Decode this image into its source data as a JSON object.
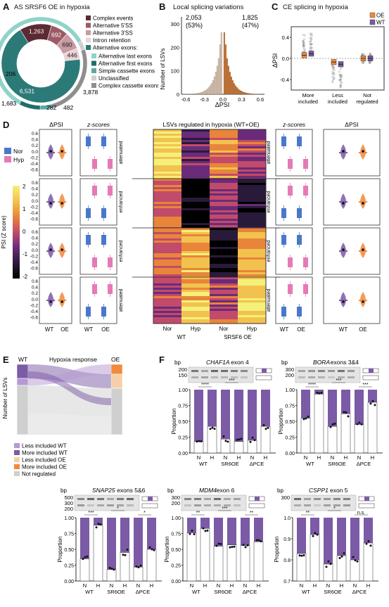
{
  "panels": {
    "A": {
      "letter": "A",
      "title": "AS SRSF6 OE in hypoxia",
      "outer_ring": [
        {
          "value": 1263,
          "label": "1,263",
          "color": "#5b2a33"
        },
        {
          "value": 692,
          "label": "692",
          "color": "#9a5a66"
        },
        {
          "value": 690,
          "label": "690",
          "color": "#c89aa2"
        },
        {
          "value": 446,
          "label": "446",
          "color": "#ead3d6"
        },
        {
          "value": 6531,
          "label": "6,531",
          "color": "#2b7a78"
        }
      ],
      "inner_ring": [
        {
          "value": 206,
          "label": "206",
          "color": "#cfcfcf"
        },
        {
          "value": 1683,
          "label": "1,683",
          "color": "#8e8e8e"
        },
        {
          "value": 282,
          "label": "282",
          "color": "#5aa9a3"
        },
        {
          "value": 482,
          "label": "482",
          "color": "#1f6e6a"
        },
        {
          "value": 3878,
          "label": "3,878",
          "color": "#8fd3c9"
        }
      ],
      "legend_main": [
        {
          "label": "Complex events",
          "color": "#5b2a33"
        },
        {
          "label": "Alternative 5'SS",
          "color": "#9a5a66"
        },
        {
          "label": "Alternative 3'SS",
          "color": "#c89aa2"
        },
        {
          "label": "Intron retention",
          "color": "#ead3d6"
        },
        {
          "label": "Alternative exons:",
          "color": "#2b7a78"
        }
      ],
      "legend_sub": [
        {
          "label": "Alternative last exons",
          "color": "#8fd3c9"
        },
        {
          "label": "Alternative first exons",
          "color": "#1f6e6a"
        },
        {
          "label": "Simple cassette exons",
          "color": "#5aa9a3"
        },
        {
          "label": "Unclassified",
          "color": "#cfcfcf"
        },
        {
          "label": "Complex cassette exons",
          "color": "#8e8e8e"
        }
      ]
    },
    "B": {
      "letter": "B",
      "title": "Local splicing variations",
      "left_count": "2,053",
      "left_pct": "(53%)",
      "right_count": "1,825",
      "right_pct": "(47%)",
      "ylabel": "Number of LSVs",
      "xlabel": "ΔPSI",
      "yticks": [
        "300",
        "200",
        "100",
        "0"
      ],
      "xticks": [
        "-0.6",
        "-0.3",
        "0.0",
        "0.3",
        "0.6"
      ]
    },
    "C": {
      "letter": "C",
      "title": "CE splicing in hypoxia",
      "legend": [
        {
          "label": "OE",
          "color": "#f08a3c"
        },
        {
          "label": "WT",
          "color": "#7b5aa6"
        }
      ],
      "ylabel": "ΔPSI",
      "yticks": [
        "0.4",
        "0.0",
        "-0.4"
      ],
      "categories": [
        "More included",
        "Less included",
        "Not regulated"
      ]
    },
    "D": {
      "letter": "D",
      "dpsi_title": "ΔPSI",
      "z_title": "z-scores",
      "heat_title": "LSVs regulated in hypoxia (WT+OE)",
      "legend": [
        {
          "label": "Nor",
          "color": "#4a78c8"
        },
        {
          "label": "Hyp",
          "color": "#e47bb6"
        }
      ],
      "colorbar_label": "PSI (Z score)",
      "colorbar_ticks": [
        "2",
        "1",
        "0",
        "-1",
        "-2"
      ],
      "left_groups": [
        "attenuated",
        "enhanced",
        "enhanced",
        "attenuated"
      ],
      "right_groups": [
        "attenuated",
        "enhanced",
        "enhanced",
        "attenuated"
      ],
      "dpsi_ticks": [
        "0.6",
        "0.4",
        "0.2",
        "0.0",
        "-0.2",
        "-0.4",
        "-0.6"
      ],
      "x_wt": "WT",
      "x_oe": "OE",
      "heat_cols": [
        "Nor",
        "Hyp",
        "Nor",
        "Hyp"
      ],
      "heat_groups": [
        "WT",
        "SRSF6 OE"
      ]
    },
    "E": {
      "letter": "E",
      "col_wt": "WT",
      "col_mid": "Hypoxia response",
      "col_oe": "OE",
      "ylabel": "Number of LSVs",
      "legend": [
        {
          "label": "Less included WT",
          "color": "#b59ad3"
        },
        {
          "label": "More included WT",
          "color": "#7b5aa6"
        },
        {
          "label": "Less included OE",
          "color": "#f6cfa8"
        },
        {
          "label": "More included OE",
          "color": "#f08a3c"
        },
        {
          "label": "Not regulated",
          "color": "#cfcfcf"
        }
      ]
    },
    "F": {
      "letter": "F",
      "bp": "bp",
      "ylabel": "Proportion",
      "conds": [
        "N",
        "H",
        "N",
        "H",
        "N",
        "H"
      ],
      "groups": [
        "WT",
        "SR6OE",
        "ΔPCE"
      ],
      "genes": [
        {
          "gene": "CHAF1A",
          "exon": "exon 4",
          "ladder": [
            "200",
            "150"
          ],
          "yticks": [
            "1.00",
            "0.75",
            "0.50",
            "0.25",
            "0.00"
          ],
          "values": [
            0.18,
            0.42,
            0.22,
            0.18,
            0.2,
            0.42
          ],
          "sig": [
            "****",
            "***"
          ]
        },
        {
          "gene": "BORA",
          "exon": "exons 3&4",
          "ladder": [
            "300",
            "200"
          ],
          "yticks": [
            "1.00",
            "0.75",
            "0.50",
            "0.25",
            "0.00"
          ],
          "values": [
            0.55,
            0.93,
            0.42,
            0.62,
            0.45,
            0.8
          ],
          "sig": [
            "****",
            "***",
            "***"
          ]
        },
        {
          "gene": "SNAP25",
          "exon": "exons 5&6",
          "ladder": [
            "500",
            "300",
            "200"
          ],
          "yticks": [
            "1.00",
            "0.75",
            "0.50",
            "0.25",
            "0.00"
          ],
          "values": [
            0.35,
            0.88,
            0.18,
            0.45,
            0.22,
            0.5
          ],
          "sig": [
            "***",
            "*",
            "*"
          ]
        },
        {
          "gene": "MDM4",
          "exon": "exon 6",
          "ladder": [
            "300",
            "200"
          ],
          "yticks": [
            "1.00",
            "0.75",
            "0.50",
            "0.25",
            "0.00"
          ],
          "values": [
            0.76,
            0.83,
            0.55,
            0.57,
            0.56,
            0.62
          ],
          "sig": [
            "**",
            "***",
            "**"
          ]
        },
        {
          "gene": "CSPP1",
          "exon": "exon 5",
          "ladder": [
            "300"
          ],
          "yticks": [
            "1.0",
            "0.9",
            "0.8",
            "0.7"
          ],
          "values": [
            0.83,
            0.92,
            0.78,
            0.82,
            0.8,
            0.88
          ],
          "sig": [
            "**",
            "*",
            "n.s."
          ]
        }
      ]
    }
  },
  "colors": {
    "purple": "#7b5aa6",
    "light_purple": "#b59ad3",
    "orange": "#f08a3c",
    "nor_blue": "#4a78c8",
    "hyp_pink": "#e47bb6"
  }
}
